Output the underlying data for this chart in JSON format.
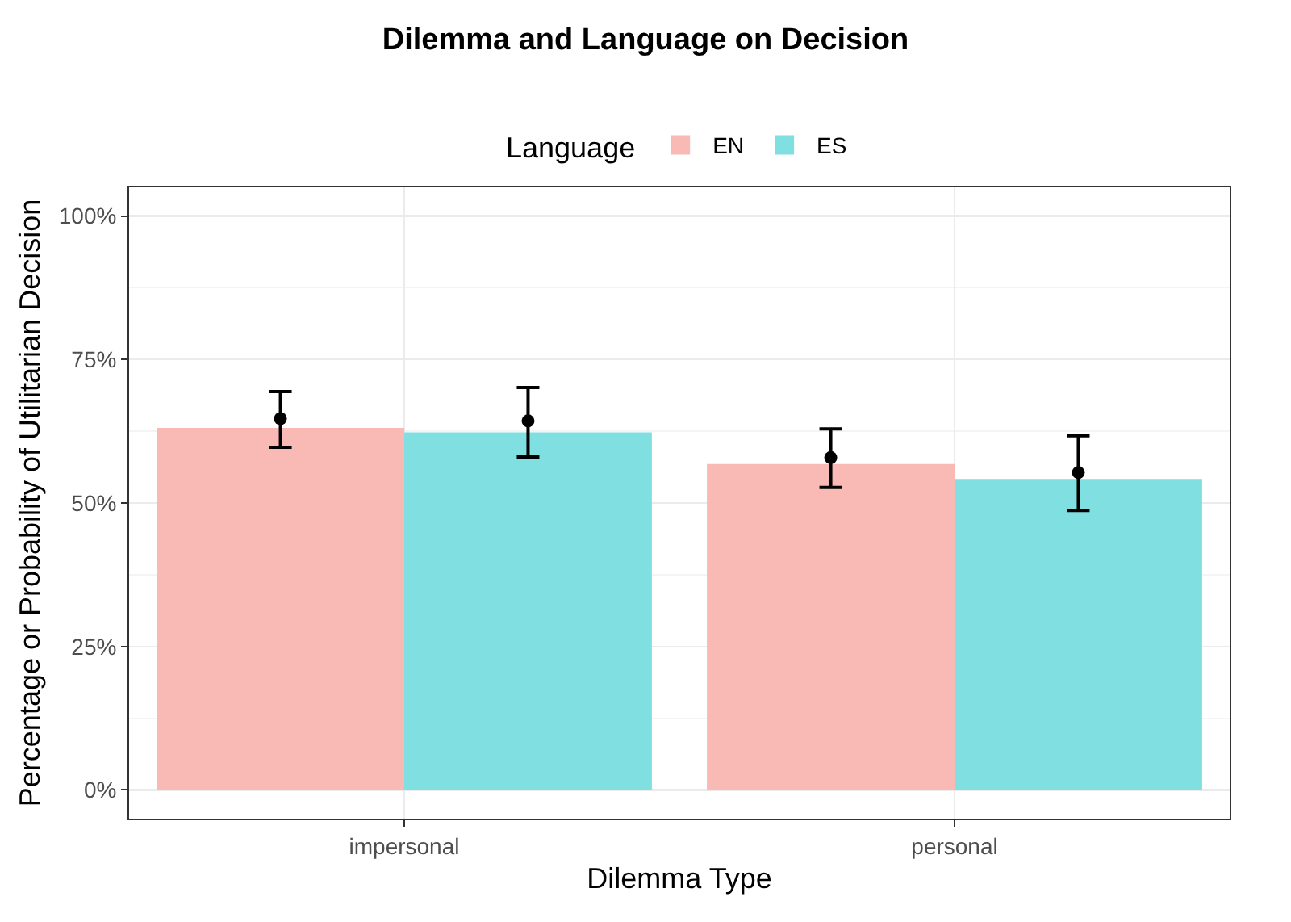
{
  "chart_data": {
    "type": "bar",
    "title": "Dilemma and Language on Decision",
    "xlabel": "Dilemma Type",
    "ylabel": "Percentage or Probability of Utilitarian Decision",
    "legend_title": "Language",
    "categories": [
      "impersonal",
      "personal"
    ],
    "series": [
      {
        "name": "EN",
        "color": "#f9b9b4",
        "values": [
          63.1,
          56.8
        ]
      },
      {
        "name": "ES",
        "color": "#7fdfe1",
        "values": [
          62.3,
          54.2
        ]
      },
      {
        "type": "scatter",
        "color": "#000000",
        "values": [
          64.7,
          57.9
        ],
        "errors": [
          [
            59.7,
            69.4
          ],
          [
            52.7,
            62.9
          ]
        ]
      },
      {
        "type": "scatter",
        "color": "#000000",
        "values": [
          64.3,
          55.3
        ],
        "errors": [
          [
            58.0,
            70.1
          ],
          [
            48.7,
            61.7
          ]
        ]
      }
    ],
    "ylim": [
      -5,
      105
    ],
    "yticks": [
      {
        "value": 0,
        "label": "0%"
      },
      {
        "value": 25,
        "label": "25%"
      },
      {
        "value": 50,
        "label": "50%"
      },
      {
        "value": 75,
        "label": "75%"
      },
      {
        "value": 100,
        "label": "100%"
      }
    ],
    "grid": true,
    "legend": "top",
    "marker": "circle"
  }
}
